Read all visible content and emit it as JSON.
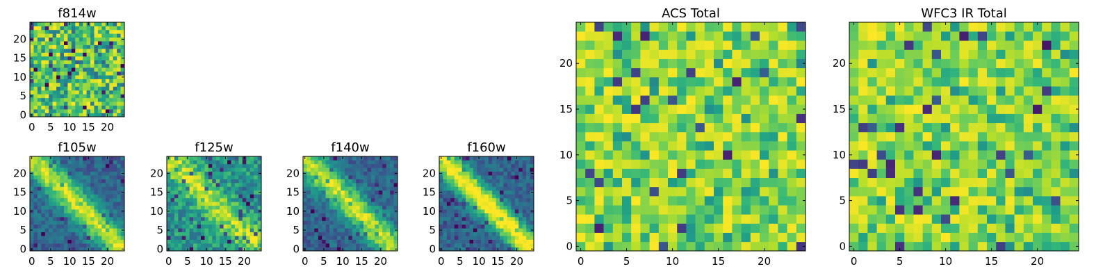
{
  "chart_data": [
    {
      "type": "heatmap",
      "title": "f814w",
      "pattern": "noise",
      "seed": 3,
      "colormap": "viridis",
      "x_ticks": [
        "0",
        "5",
        "10",
        "15",
        "20"
      ],
      "y_ticks": [
        "0",
        "5",
        "10",
        "15",
        "20"
      ],
      "xlim": [
        0,
        25
      ],
      "ylim": [
        0,
        25
      ]
    },
    {
      "type": "heatmap",
      "title": "f105w",
      "pattern": "diag",
      "seed": 11,
      "colormap": "viridis",
      "x_ticks": [
        "0",
        "5",
        "10",
        "15",
        "20"
      ],
      "y_ticks": [
        "0",
        "5",
        "10",
        "15",
        "20"
      ],
      "xlim": [
        0,
        25
      ],
      "ylim": [
        0,
        25
      ]
    },
    {
      "type": "heatmap",
      "title": "f125w",
      "pattern": "mixed",
      "seed": 17,
      "colormap": "viridis",
      "x_ticks": [
        "0",
        "5",
        "10",
        "15",
        "20"
      ],
      "y_ticks": [
        "0",
        "5",
        "10",
        "15",
        "20"
      ],
      "xlim": [
        0,
        25
      ],
      "ylim": [
        0,
        25
      ]
    },
    {
      "type": "heatmap",
      "title": "f140w",
      "pattern": "diag",
      "seed": 23,
      "colormap": "viridis",
      "x_ticks": [
        "0",
        "5",
        "10",
        "15",
        "20"
      ],
      "y_ticks": [
        "0",
        "5",
        "10",
        "15",
        "20"
      ],
      "xlim": [
        0,
        25
      ],
      "ylim": [
        0,
        25
      ]
    },
    {
      "type": "heatmap",
      "title": "f160w",
      "pattern": "diagstrong",
      "seed": 29,
      "colormap": "viridis",
      "x_ticks": [
        "0",
        "5",
        "10",
        "15",
        "20"
      ],
      "y_ticks": [
        "0",
        "5",
        "10",
        "15",
        "20"
      ],
      "xlim": [
        0,
        25
      ],
      "ylim": [
        0,
        25
      ]
    },
    {
      "type": "heatmap",
      "title": "ACS Total",
      "pattern": "bright",
      "seed": 41,
      "colormap": "viridis",
      "x_ticks": [
        "0",
        "5",
        "10",
        "15",
        "20"
      ],
      "y_ticks": [
        "0",
        "5",
        "10",
        "15",
        "20"
      ],
      "xlim": [
        0,
        25
      ],
      "ylim": [
        0,
        25
      ]
    },
    {
      "type": "heatmap",
      "title": "WFC3 IR Total",
      "pattern": "bright",
      "seed": 53,
      "colormap": "viridis",
      "x_ticks": [
        "0",
        "5",
        "10",
        "15",
        "20"
      ],
      "y_ticks": [
        "0",
        "5",
        "10",
        "15",
        "20"
      ],
      "xlim": [
        0,
        25
      ],
      "ylim": [
        0,
        25
      ]
    }
  ]
}
